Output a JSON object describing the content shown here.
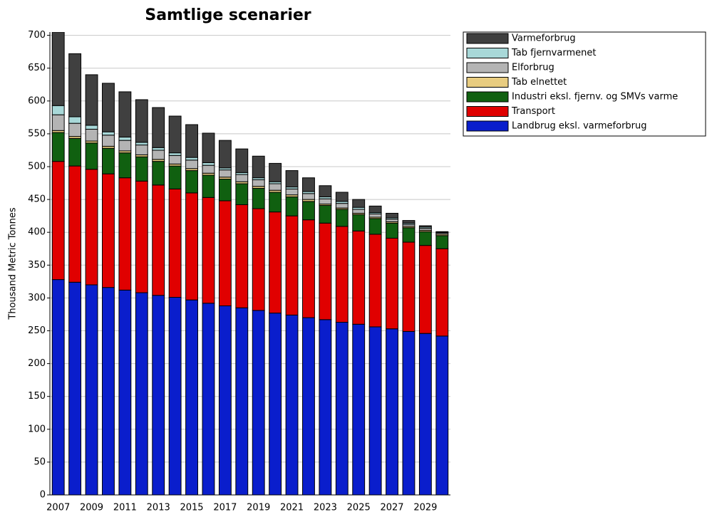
{
  "chart_data": {
    "type": "stacked_bar",
    "title": "Samtlige scenarier",
    "y_label": "Thousand Metric Tonnes",
    "categories": [
      "2007",
      null,
      "2009",
      null,
      "2011",
      null,
      "2013",
      null,
      "2015",
      null,
      "2017",
      null,
      "2019",
      null,
      "2021",
      null,
      "2023",
      null,
      "2025",
      null,
      "2027",
      null,
      "2029",
      null
    ],
    "series": [
      {
        "name": "Landbrug eksl. varmeforbrug",
        "color": "#0a1ecc",
        "values": [
          328,
          324,
          320,
          316,
          312,
          308,
          304,
          301,
          297,
          292,
          288,
          285,
          281,
          277,
          274,
          270,
          267,
          263,
          260,
          256,
          253,
          249,
          246,
          242
        ]
      },
      {
        "name": "Transport",
        "color": "#e00000",
        "values": [
          180,
          177,
          176,
          173,
          171,
          170,
          168,
          165,
          163,
          161,
          160,
          157,
          155,
          154,
          151,
          149,
          147,
          146,
          142,
          141,
          138,
          136,
          134,
          133
        ]
      },
      {
        "name": "Industri eksl. fjernv. og SMVs varme",
        "color": "#106010",
        "values": [
          44,
          42,
          40,
          39,
          38,
          37,
          36,
          35,
          34,
          34,
          33,
          32,
          31,
          30,
          29,
          28,
          27,
          26,
          25,
          24,
          23,
          22,
          21,
          20
        ]
      },
      {
        "name": "Tab elnettet",
        "color": "#e8cc80",
        "values": [
          3,
          3,
          3,
          3,
          3,
          3,
          3,
          3,
          3,
          3,
          3,
          3,
          3,
          3,
          3,
          3,
          2,
          2,
          2,
          2,
          2,
          2,
          2,
          2
        ]
      },
      {
        "name": "Elforbrug",
        "color": "#b4b4b4",
        "values": [
          24,
          20,
          18,
          17,
          16,
          15,
          14,
          13,
          13,
          12,
          11,
          11,
          10,
          10,
          9,
          9,
          8,
          7,
          6,
          5,
          4,
          3,
          3,
          2
        ]
      },
      {
        "name": "Tab fjernvarmenet",
        "color": "#a8d8d8",
        "values": [
          14,
          10,
          6,
          5,
          5,
          4,
          4,
          4,
          4,
          4,
          3,
          3,
          3,
          3,
          3,
          3,
          3,
          3,
          3,
          2,
          2,
          2,
          2,
          1
        ]
      },
      {
        "name": "Varmeforbrug",
        "color": "#404040",
        "values": [
          112,
          96,
          77,
          74,
          69,
          65,
          61,
          56,
          50,
          45,
          42,
          36,
          33,
          28,
          25,
          21,
          17,
          14,
          12,
          10,
          7,
          4,
          2,
          1
        ]
      }
    ],
    "ylim": [
      0,
      705
    ],
    "yticks": [
      0,
      50,
      100,
      150,
      200,
      250,
      300,
      350,
      400,
      450,
      500,
      550,
      600,
      650,
      700
    ],
    "grid": true,
    "legend": "right"
  }
}
